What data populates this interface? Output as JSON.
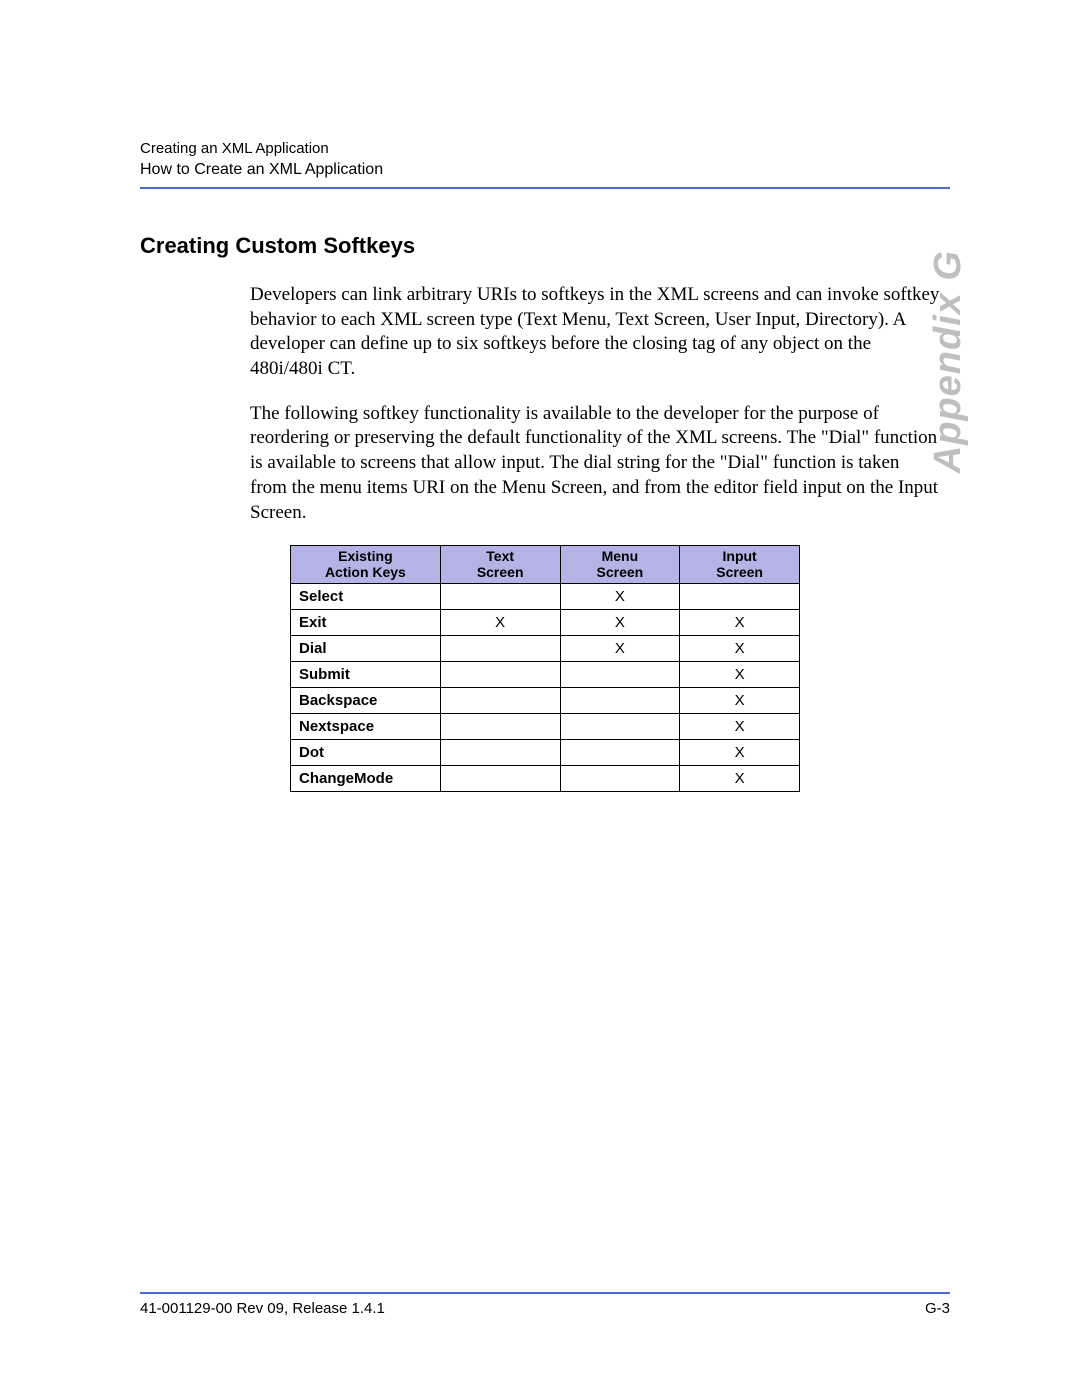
{
  "header": {
    "line1": "Creating an XML Application",
    "line2": "How to Create an XML Application"
  },
  "appendix_label": "Appendix G",
  "section": {
    "heading": "Creating Custom Softkeys",
    "para1": "Developers can link arbitrary URIs to softkeys in the XML screens and can invoke softkey behavior to each XML screen type (Text Menu, Text Screen, User Input, Directory). A developer can define up to six softkeys before the closing tag of any object on the 480i/480i CT.",
    "para2": "The following softkey functionality is available to the developer for the purpose of reordering or preserving the default functionality of the XML screens.  The \"Dial\" function is available to screens that allow input.  The dial string for the \"Dial\" function is taken from the menu items URI on the Menu Screen, and from the editor field input on the Input Screen."
  },
  "table": {
    "headers": {
      "action": {
        "l1": "Existing",
        "l2": "Action Keys"
      },
      "text": {
        "l1": "Text",
        "l2": "Screen"
      },
      "menu": {
        "l1": "Menu",
        "l2": "Screen"
      },
      "input": {
        "l1": "Input",
        "l2": "Screen"
      }
    },
    "rows": [
      {
        "label": "Select",
        "text": "",
        "menu": "X",
        "input": ""
      },
      {
        "label": "Exit",
        "text": "X",
        "menu": "X",
        "input": "X"
      },
      {
        "label": "Dial",
        "text": "",
        "menu": "X",
        "input": "X"
      },
      {
        "label": "Submit",
        "text": "",
        "menu": "",
        "input": "X"
      },
      {
        "label": "Backspace",
        "text": "",
        "menu": "",
        "input": "X"
      },
      {
        "label": "Nextspace",
        "text": "",
        "menu": "",
        "input": "X"
      },
      {
        "label": "Dot",
        "text": "",
        "menu": "",
        "input": "X"
      },
      {
        "label": "ChangeMode",
        "text": "",
        "menu": "",
        "input": "X"
      }
    ]
  },
  "footer": {
    "left": "41-001129-00 Rev 09, Release 1.4.1",
    "right": "G-3"
  },
  "colors": {
    "rule": "#4d6bd6",
    "table_header_bg": "#b3b3e6",
    "appendix_text": "#bfbfbf"
  }
}
